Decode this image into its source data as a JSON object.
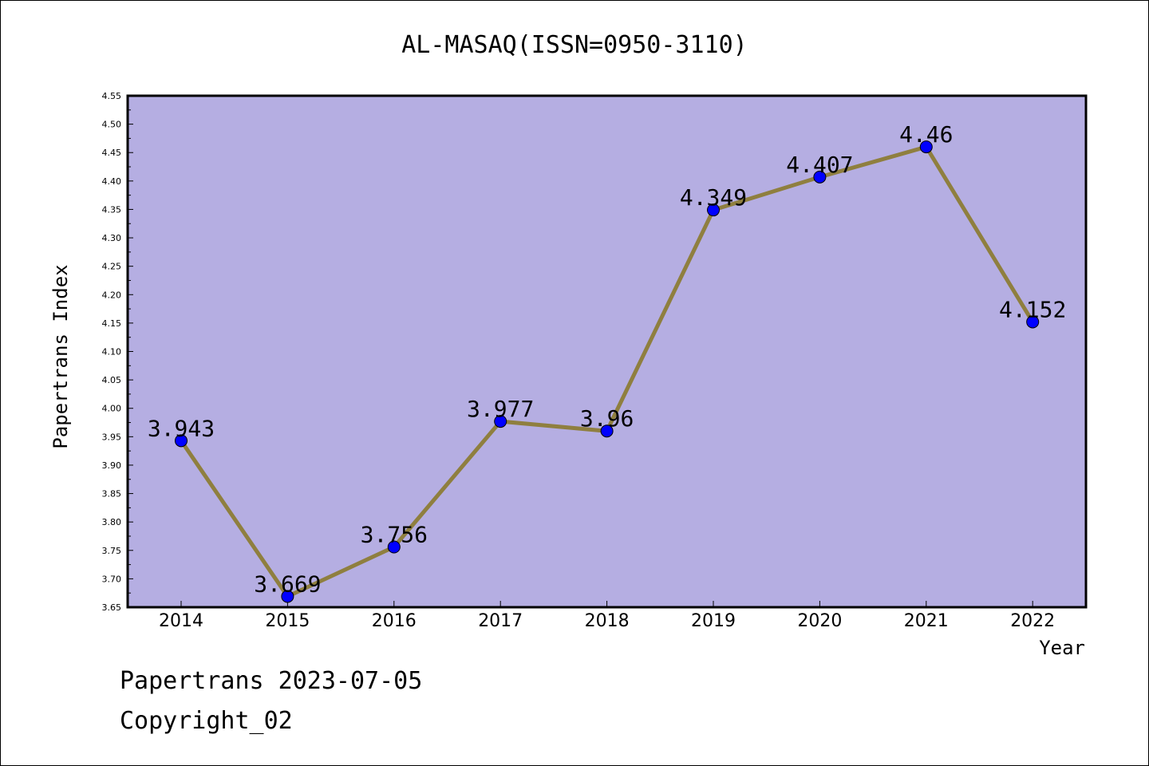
{
  "chart_data": {
    "type": "line",
    "title": "AL-MASAQ(ISSN=0950-3110)",
    "xlabel": "Year",
    "ylabel": "Papertrans Index",
    "categories": [
      "2014",
      "2015",
      "2016",
      "2017",
      "2018",
      "2019",
      "2020",
      "2021",
      "2022"
    ],
    "values": [
      3.943,
      3.669,
      3.756,
      3.977,
      3.96,
      4.349,
      4.407,
      4.46,
      4.152
    ],
    "data_labels": [
      "3.943",
      "3.669",
      "3.756",
      "3.977",
      "3.96",
      "4.349",
      "4.407",
      "4.46",
      "4.152"
    ],
    "ylim": [
      3.65,
      4.55
    ],
    "yticks": [
      "3.65",
      "3.70",
      "3.75",
      "3.80",
      "3.85",
      "3.90",
      "3.95",
      "4.00",
      "4.05",
      "4.10",
      "4.15",
      "4.20",
      "4.25",
      "4.30",
      "4.35",
      "4.40",
      "4.45",
      "4.50",
      "4.55"
    ],
    "grid": false,
    "colors": {
      "plot_background": "#b5aee2",
      "line": "#8f7f3f",
      "marker": "#0000ff"
    }
  },
  "footer": {
    "line1": "Papertrans 2023-07-05",
    "line2": "Copyright_02"
  }
}
